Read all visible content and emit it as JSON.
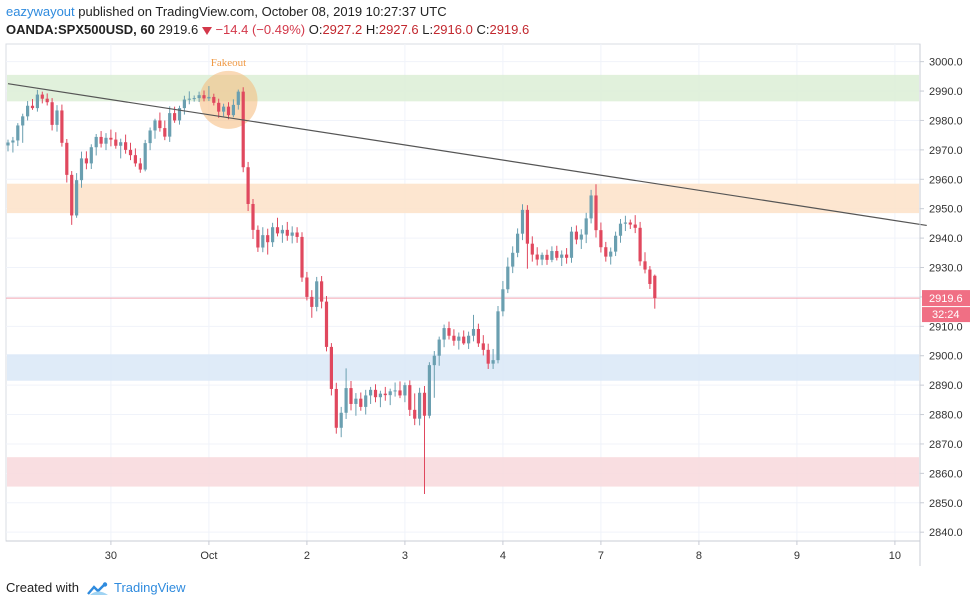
{
  "header": {
    "user": "eazywayout",
    "published": "published on TradingView.com, October 08, 2019 10:27:37 UTC",
    "symbol": "OANDA:SPX500USD, 60",
    "last": "2919.6",
    "change_icon": "triangle-down-icon",
    "change": "−14.4 (−0.49%)",
    "o_label": "O:",
    "o": "2927.2",
    "h_label": "H:",
    "h": "2927.6",
    "l_label": "L:",
    "l": "2916.0",
    "c_label": "C:",
    "c": "2919.6"
  },
  "footer": {
    "created_with": "Created with",
    "brand": "TradingView",
    "logo_icon": "tradingview-logo-icon"
  },
  "chart_data": {
    "type": "candlestick",
    "ylim": [
      2837,
      3006
    ],
    "y_ticks": [
      3000,
      2990,
      2980,
      2970,
      2960,
      2950,
      2940,
      2930,
      2920,
      2910,
      2900,
      2890,
      2880,
      2870,
      2860,
      2850,
      2840
    ],
    "y_tick_labels": [
      "3000.0",
      "2990.0",
      "2980.0",
      "2970.0",
      "2960.0",
      "2950.0",
      "2940.0",
      "2930.0",
      "2920.0",
      "2910.0",
      "2900.0",
      "2890.0",
      "2880.0",
      "2870.0",
      "2860.0",
      "2850.0",
      "2840.0"
    ],
    "x_ticks": [
      {
        "label": "30",
        "pos": 21
      },
      {
        "label": "Oct",
        "pos": 41
      },
      {
        "label": "2",
        "pos": 61
      },
      {
        "label": "3",
        "pos": 81
      },
      {
        "label": "4",
        "pos": 101
      },
      {
        "label": "7",
        "pos": 121
      },
      {
        "label": "8",
        "pos": 141
      },
      {
        "label": "9",
        "pos": 161
      },
      {
        "label": "10",
        "pos": 181
      }
    ],
    "price_label": "2919.6",
    "countdown_label": "32:24",
    "annotation": "Fakeout",
    "trendline": {
      "start": [
        0,
        2992.5
      ],
      "end": [
        187.5,
        2944.3
      ],
      "color": "#555555"
    },
    "zones": [
      {
        "from": 2986.5,
        "to": 2995.5,
        "color": "#dcefd6"
      },
      {
        "from": 2948.5,
        "to": 2958.5,
        "color": "#fde2c8"
      },
      {
        "from": 2891.5,
        "to": 2900.5,
        "color": "#d9e8f7"
      },
      {
        "from": 2855.5,
        "to": 2865.5,
        "color": "#f8d8dc"
      }
    ],
    "colors": {
      "up": "#6a9fb0",
      "down": "#e0485e",
      "price_tag": "#f06f84",
      "grid": "#f0f3fa",
      "axis_text": "#333333"
    },
    "candles": [
      [
        2971.5,
        2973.5,
        2969.5,
        2972.5
      ],
      [
        2972.5,
        2974.4,
        2969.1,
        2973.2
      ],
      [
        2973.2,
        2979.1,
        2971.3,
        2978.3
      ],
      [
        2978.3,
        2982.3,
        2972.4,
        2981.4
      ],
      [
        2981.4,
        2986.6,
        2980.0,
        2985.0
      ],
      [
        2985.0,
        2987.3,
        2983.6,
        2984.2
      ],
      [
        2984.2,
        2990.4,
        2983.0,
        2988.8
      ],
      [
        2988.8,
        2989.8,
        2985.8,
        2987.4
      ],
      [
        2987.4,
        2989.2,
        2985.1,
        2986.2
      ],
      [
        2986.2,
        2987.6,
        2976.6,
        2978.5
      ],
      [
        2978.5,
        2985.2,
        2976.2,
        2983.4
      ],
      [
        2983.4,
        2985.4,
        2971.1,
        2972.4
      ],
      [
        2972.4,
        2973.7,
        2958.9,
        2961.5
      ],
      [
        2961.5,
        2962.8,
        2944.5,
        2947.7
      ],
      [
        2947.7,
        2962.1,
        2946.9,
        2959.7
      ],
      [
        2959.7,
        2969.4,
        2957.1,
        2967.1
      ],
      [
        2967.1,
        2969.5,
        2963.4,
        2965.4
      ],
      [
        2965.4,
        2971.9,
        2963.5,
        2970.9
      ],
      [
        2970.9,
        2975.4,
        2968.1,
        2974.4
      ],
      [
        2974.4,
        2976.4,
        2970.8,
        2972.1
      ],
      [
        2972.1,
        2975.7,
        2969.9,
        2974.1
      ],
      [
        2974.1,
        2976.9,
        2971.2,
        2973.5
      ],
      [
        2973.5,
        2976.0,
        2970.4,
        2971.4
      ],
      [
        2971.4,
        2973.8,
        2967.1,
        2972.6
      ],
      [
        2972.6,
        2975.2,
        2968.7,
        2970.0
      ],
      [
        2970.0,
        2972.4,
        2966.5,
        2968.2
      ],
      [
        2968.2,
        2970.5,
        2964.3,
        2965.4
      ],
      [
        2965.4,
        2967.2,
        2962.2,
        2963.3
      ],
      [
        2963.3,
        2973.4,
        2962.7,
        2972.3
      ],
      [
        2972.3,
        2977.6,
        2969.9,
        2976.6
      ],
      [
        2976.6,
        2980.6,
        2973.8,
        2980.0
      ],
      [
        2980.0,
        2982.7,
        2976.2,
        2977.4
      ],
      [
        2977.4,
        2980.0,
        2973.3,
        2974.5
      ],
      [
        2974.5,
        2984.8,
        2972.7,
        2982.5
      ],
      [
        2982.5,
        2984.7,
        2979.2,
        2980.0
      ],
      [
        2980.0,
        2985.0,
        2978.6,
        2984.2
      ],
      [
        2984.2,
        2988.4,
        2982.0,
        2987.1
      ],
      [
        2987.1,
        2989.9,
        2985.5,
        2987.4
      ],
      [
        2987.4,
        2988.5,
        2986.4,
        2987.6
      ],
      [
        2987.6,
        2989.8,
        2986.3,
        2988.6
      ],
      [
        2988.6,
        2990.2,
        2986.5,
        2987.5
      ],
      [
        2987.5,
        2991.7,
        2986.6,
        2988.0
      ],
      [
        2988.0,
        2989.1,
        2985.1,
        2986.0
      ],
      [
        2986.0,
        2987.4,
        2980.9,
        2983.0
      ],
      [
        2983.0,
        2985.7,
        2981.4,
        2984.7
      ],
      [
        2984.7,
        2986.2,
        2980.4,
        2981.8
      ],
      [
        2981.8,
        2987.2,
        2981.1,
        2985.3
      ],
      [
        2985.3,
        2990.5,
        2983.7,
        2989.8
      ],
      [
        2989.8,
        2991.3,
        2962.4,
        2964.1
      ],
      [
        2964.1,
        2965.9,
        2949.2,
        2951.6
      ],
      [
        2951.6,
        2953.3,
        2939.7,
        2942.8
      ],
      [
        2942.8,
        2944.3,
        2935.3,
        2936.8
      ],
      [
        2936.8,
        2943.7,
        2935.2,
        2941.0
      ],
      [
        2941.0,
        2943.2,
        2934.4,
        2938.6
      ],
      [
        2938.6,
        2945.2,
        2937.0,
        2943.7
      ],
      [
        2943.7,
        2946.9,
        2940.6,
        2941.6
      ],
      [
        2941.6,
        2944.4,
        2938.4,
        2942.8
      ],
      [
        2942.8,
        2945.5,
        2939.1,
        2940.8
      ],
      [
        2940.8,
        2944.0,
        2938.2,
        2941.9
      ],
      [
        2941.9,
        2943.7,
        2938.4,
        2940.4
      ],
      [
        2940.4,
        2942.0,
        2925.1,
        2926.6
      ],
      [
        2926.6,
        2928.5,
        2918.8,
        2920.0
      ],
      [
        2920.0,
        2922.3,
        2912.9,
        2916.6
      ],
      [
        2916.6,
        2926.8,
        2915.1,
        2925.3
      ],
      [
        2925.3,
        2927.1,
        2916.1,
        2918.4
      ],
      [
        2918.4,
        2920.3,
        2901.5,
        2903.0
      ],
      [
        2903.0,
        2904.3,
        2886.5,
        2888.7
      ],
      [
        2888.7,
        2890.8,
        2873.5,
        2875.5
      ],
      [
        2875.5,
        2882.6,
        2872.3,
        2880.6
      ],
      [
        2880.6,
        2895.7,
        2878.5,
        2889.0
      ],
      [
        2889.0,
        2891.4,
        2881.4,
        2883.6
      ],
      [
        2883.6,
        2887.3,
        2879.6,
        2885.4
      ],
      [
        2885.4,
        2887.5,
        2881.3,
        2882.6
      ],
      [
        2882.6,
        2888.4,
        2880.0,
        2886.5
      ],
      [
        2886.5,
        2889.4,
        2883.6,
        2888.4
      ],
      [
        2888.4,
        2890.3,
        2884.2,
        2885.9
      ],
      [
        2885.9,
        2888.1,
        2882.5,
        2887.1
      ],
      [
        2887.1,
        2889.4,
        2884.7,
        2886.6
      ],
      [
        2886.6,
        2888.8,
        2883.2,
        2887.9
      ],
      [
        2887.9,
        2890.9,
        2886.1,
        2888.2
      ],
      [
        2888.2,
        2891.3,
        2885.6,
        2886.5
      ],
      [
        2886.5,
        2890.9,
        2884.2,
        2890.0
      ],
      [
        2890.0,
        2891.6,
        2879.5,
        2881.6
      ],
      [
        2881.6,
        2887.2,
        2876.4,
        2878.6
      ],
      [
        2878.6,
        2889.1,
        2876.3,
        2887.4
      ],
      [
        2887.4,
        2889.7,
        2853.0,
        2879.6
      ],
      [
        2879.6,
        2897.8,
        2878.7,
        2896.8
      ],
      [
        2896.8,
        2901.6,
        2885.7,
        2900.0
      ],
      [
        2900.0,
        2906.5,
        2896.6,
        2905.5
      ],
      [
        2905.5,
        2910.6,
        2902.9,
        2909.4
      ],
      [
        2909.4,
        2911.6,
        2905.5,
        2906.8
      ],
      [
        2906.8,
        2909.0,
        2903.4,
        2905.1
      ],
      [
        2905.1,
        2907.9,
        2902.1,
        2906.5
      ],
      [
        2906.5,
        2908.6,
        2903.7,
        2904.2
      ],
      [
        2904.2,
        2908.2,
        2902.3,
        2906.8
      ],
      [
        2906.8,
        2913.9,
        2904.9,
        2909.1
      ],
      [
        2909.1,
        2910.9,
        2903.0,
        2904.2
      ],
      [
        2904.2,
        2907.0,
        2900.1,
        2902.0
      ],
      [
        2902.0,
        2904.1,
        2895.5,
        2897.3
      ],
      [
        2897.3,
        2902.3,
        2895.5,
        2898.5
      ],
      [
        2898.5,
        2916.9,
        2897.4,
        2915.1
      ],
      [
        2915.1,
        2925.4,
        2913.4,
        2922.6
      ],
      [
        2922.6,
        2933.4,
        2921.3,
        2930.3
      ],
      [
        2930.3,
        2937.2,
        2928.1,
        2935.0
      ],
      [
        2935.0,
        2943.3,
        2933.5,
        2941.5
      ],
      [
        2941.5,
        2951.5,
        2939.3,
        2949.6
      ],
      [
        2949.6,
        2951.2,
        2929.6,
        2938.1
      ],
      [
        2938.1,
        2940.6,
        2932.0,
        2934.4
      ],
      [
        2934.4,
        2936.9,
        2930.7,
        2932.7
      ],
      [
        2932.7,
        2935.1,
        2930.8,
        2934.3
      ],
      [
        2934.3,
        2936.1,
        2930.9,
        2932.6
      ],
      [
        2932.6,
        2937.2,
        2931.8,
        2935.6
      ],
      [
        2935.6,
        2937.4,
        2932.4,
        2933.3
      ],
      [
        2933.3,
        2935.8,
        2930.5,
        2934.4
      ],
      [
        2934.4,
        2936.6,
        2931.3,
        2933.3
      ],
      [
        2933.3,
        2943.8,
        2931.6,
        2942.2
      ],
      [
        2942.2,
        2944.3,
        2937.9,
        2939.5
      ],
      [
        2939.5,
        2943.0,
        2936.3,
        2941.2
      ],
      [
        2941.2,
        2948.6,
        2938.3,
        2946.7
      ],
      [
        2946.7,
        2956.4,
        2945.0,
        2954.5
      ],
      [
        2954.5,
        2958.3,
        2940.2,
        2942.7
      ],
      [
        2942.7,
        2945.3,
        2935.1,
        2936.9
      ],
      [
        2936.9,
        2938.7,
        2932.0,
        2933.7
      ],
      [
        2933.7,
        2936.8,
        2931.0,
        2935.4
      ],
      [
        2935.4,
        2942.2,
        2933.9,
        2940.8
      ],
      [
        2940.8,
        2946.5,
        2938.4,
        2944.9
      ],
      [
        2944.9,
        2947.6,
        2942.4,
        2945.3
      ],
      [
        2945.3,
        2946.3,
        2943.1,
        2944.6
      ],
      [
        2944.6,
        2947.8,
        2941.7,
        2943.5
      ],
      [
        2943.5,
        2945.5,
        2930.6,
        2932.1
      ],
      [
        2932.1,
        2935.2,
        2928.0,
        2929.3
      ],
      [
        2929.3,
        2930.5,
        2922.7,
        2924.4
      ],
      [
        2927.2,
        2927.6,
        2916.0,
        2919.6
      ]
    ]
  }
}
